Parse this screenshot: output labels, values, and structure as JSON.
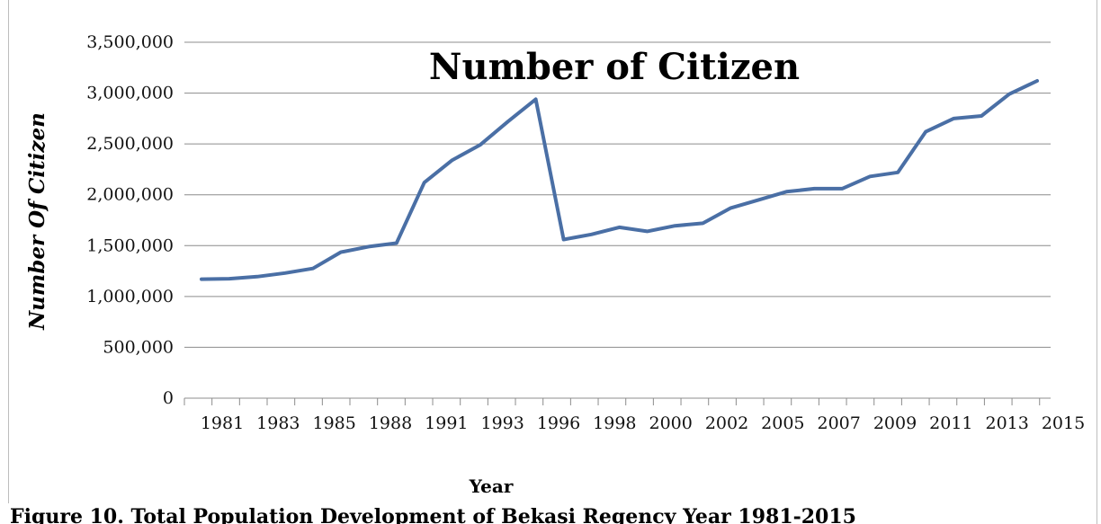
{
  "chart_data": {
    "type": "line",
    "title": "Number of Citizen",
    "xlabel": "Year",
    "ylabel": "Number  Of Citizen",
    "caption": "Figure 10. Total Population Development of Bekasi Regency Year 1981-2015",
    "ylim": [
      0,
      3500000
    ],
    "yticks": [
      "0",
      "500,000",
      "1,000,000",
      "1,500,000",
      "2,000,000",
      "2,500,000",
      "3,000,000",
      "3,500,000"
    ],
    "xtick_labels": [
      "1981",
      "1983",
      "1985",
      "1988",
      "1991",
      "1993",
      "1996",
      "1998",
      "2000",
      "2002",
      "2005",
      "2007",
      "2009",
      "2011",
      "2013",
      "2015"
    ],
    "grid": true,
    "series": [
      {
        "color": "#4a6fa5",
        "values": [
          1170000,
          1175000,
          1195000,
          1230000,
          1275000,
          1435000,
          1490000,
          1525000,
          2120000,
          2340000,
          2490000,
          2720000,
          2940000,
          1560000,
          1610000,
          1680000,
          1640000,
          1695000,
          1720000,
          1870000,
          1950000,
          2030000,
          2060000,
          2060000,
          2180000,
          2220000,
          2620000,
          2750000,
          2775000,
          2990000,
          3120000
        ]
      }
    ]
  }
}
